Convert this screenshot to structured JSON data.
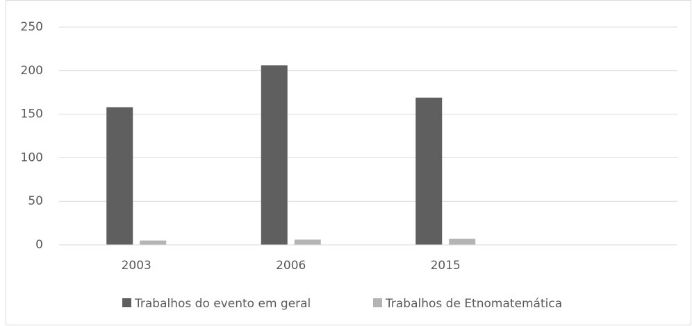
{
  "chart_data": {
    "type": "bar",
    "categories": [
      "2003",
      "2006",
      "2015",
      null
    ],
    "series": [
      {
        "name": "Trabalhos do evento em geral",
        "color": "#5f5f5f",
        "values": [
          158,
          206,
          169,
          null
        ]
      },
      {
        "name": "Trabalhos de Etnomatemática",
        "color": "#b4b4b4",
        "values": [
          5,
          6,
          7,
          null
        ]
      }
    ],
    "ylim": [
      0,
      250
    ],
    "yticks": [
      0,
      50,
      100,
      150,
      200,
      250
    ],
    "grid": true,
    "legend": "bottom"
  }
}
